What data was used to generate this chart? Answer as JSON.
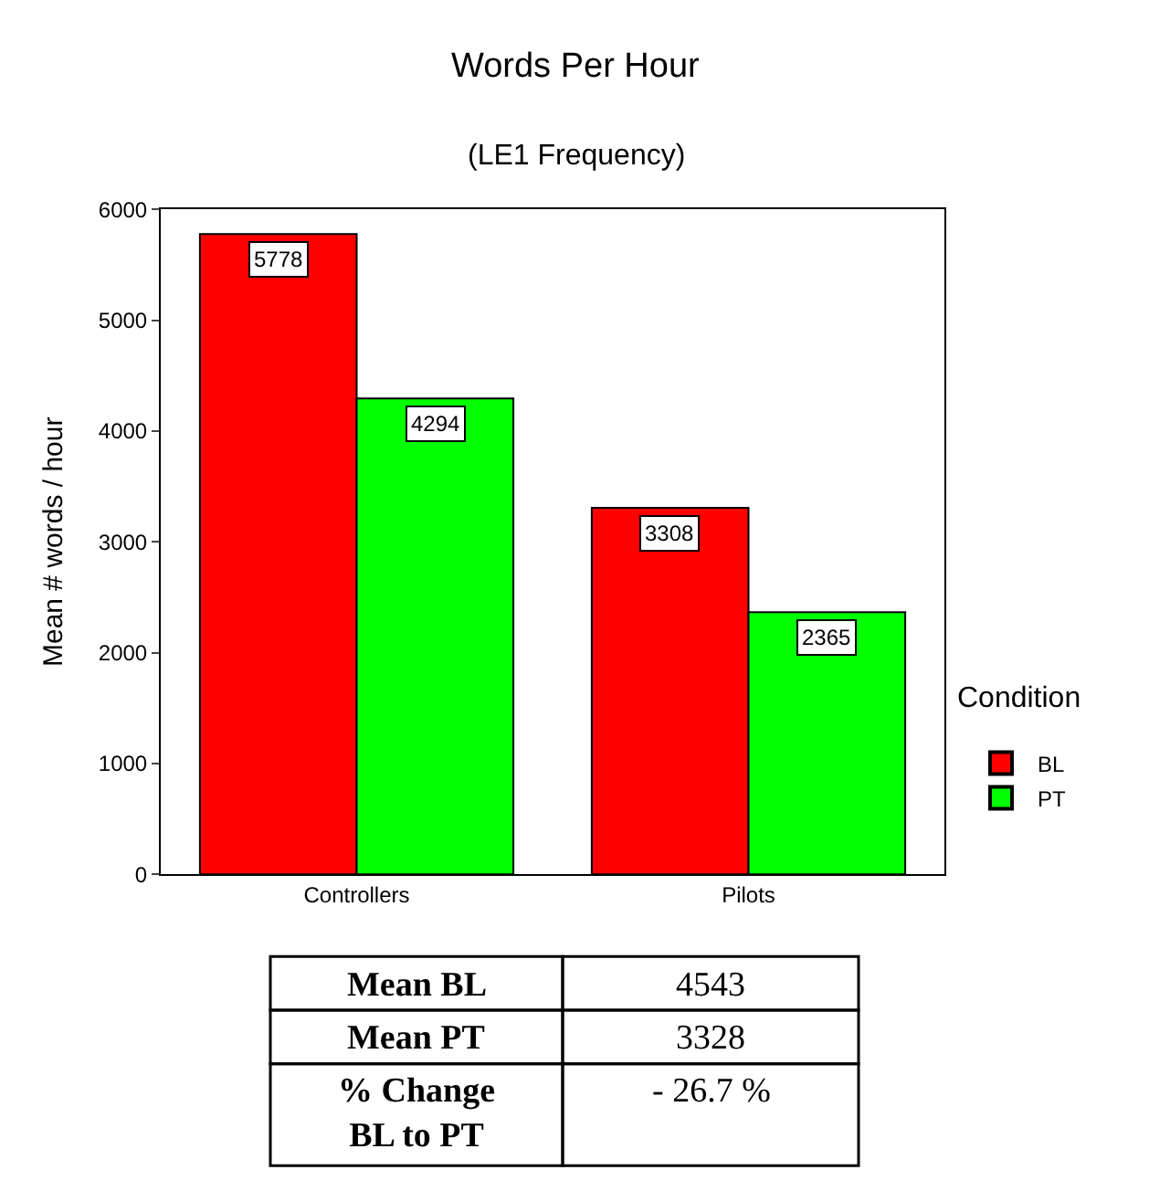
{
  "chart_data": {
    "type": "bar",
    "title": "Words Per Hour",
    "subtitle": "(LE1 Frequency)",
    "ylabel": "Mean # words / hour",
    "legend_title": "Condition",
    "categories": [
      "Controllers",
      "Pilots"
    ],
    "series": [
      {
        "name": "BL",
        "color": "#ff0000",
        "values": [
          5778,
          3308
        ]
      },
      {
        "name": "PT",
        "color": "#00ff00",
        "values": [
          4294,
          2365
        ]
      }
    ],
    "ylim": [
      0,
      6000
    ],
    "yticks": [
      0,
      1000,
      2000,
      3000,
      4000,
      5000,
      6000
    ],
    "legend": "right",
    "data_labels": true,
    "annotations": [
      "Mean BL",
      "4543",
      "Mean PT",
      "3328",
      "% Change\nBL to PT",
      "- 26.7 %"
    ]
  }
}
